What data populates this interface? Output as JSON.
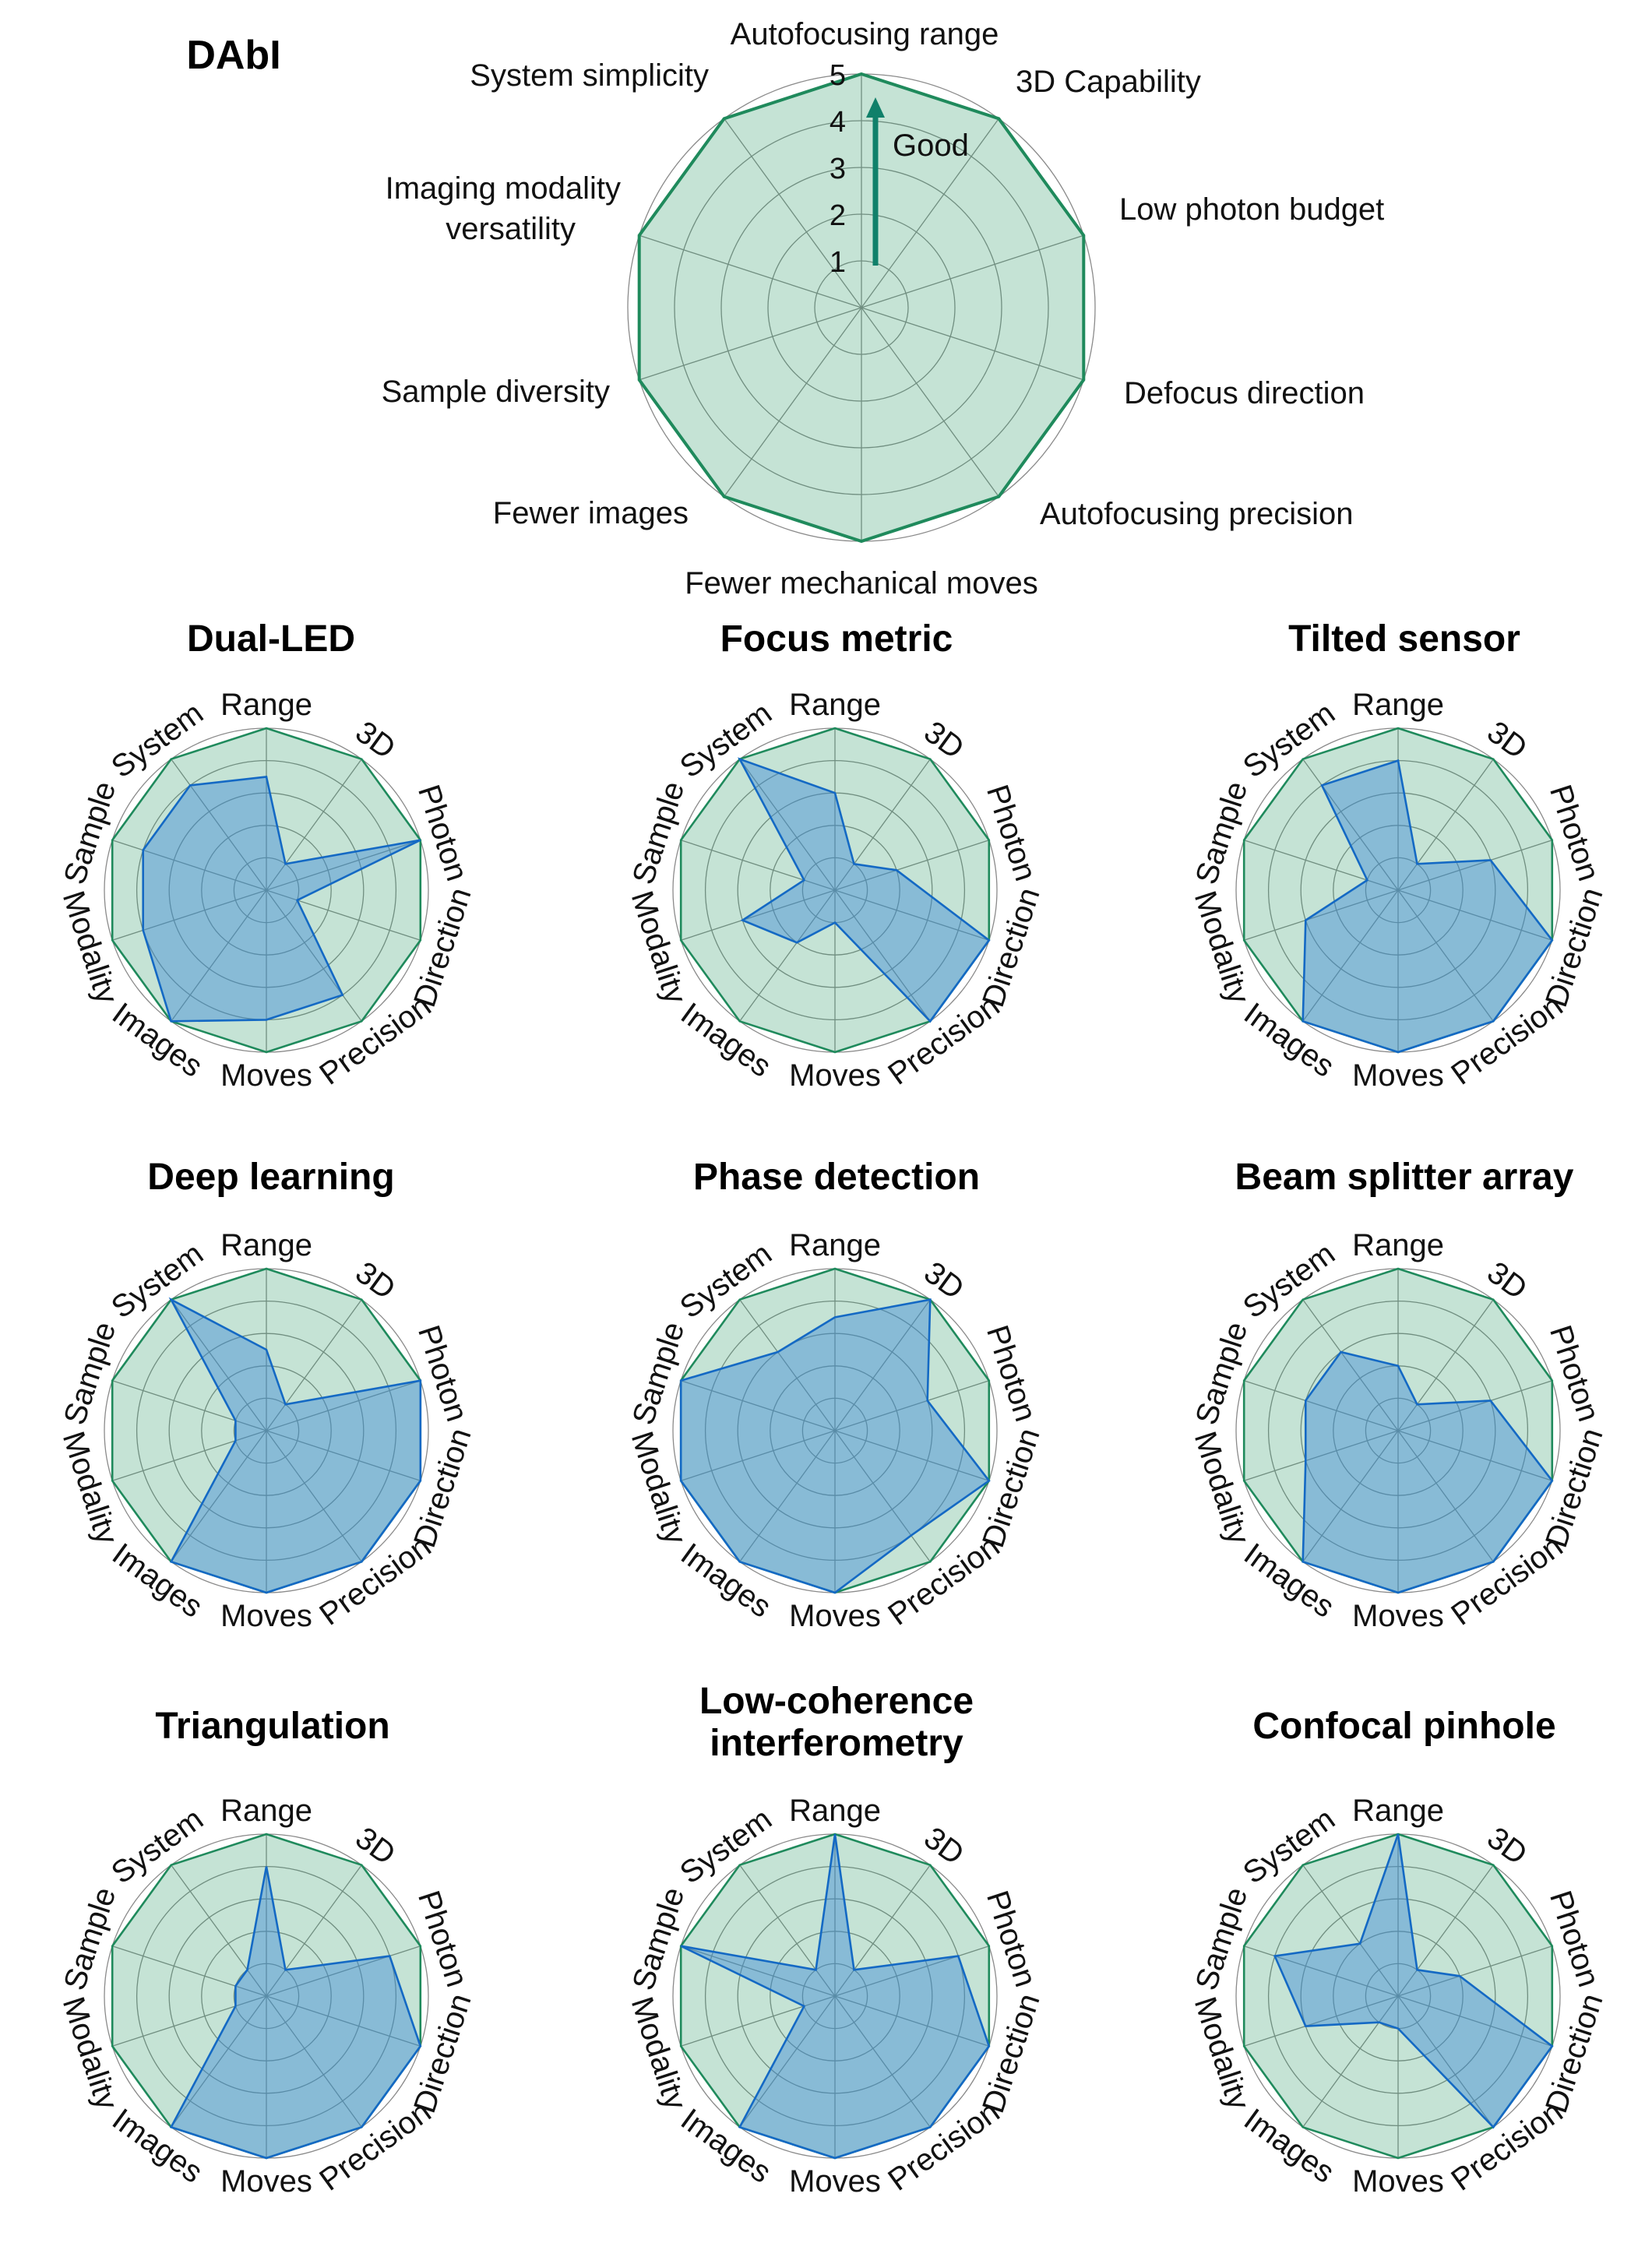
{
  "colors": {
    "dabi_line": "#1f8a5c",
    "dabi_fill": "#2e9a68",
    "method_line": "#1469c4",
    "method_fill": "#3d8ad6",
    "grid": "#8a8a8a",
    "arrow": "#10806a"
  },
  "chart_data": [
    {
      "type": "radar",
      "title": "DAbI",
      "axes": [
        "Autofocusing range",
        "3D Capability",
        "Low photon budget",
        "Defocus direction",
        "Autofocusing precision",
        "Fewer mechanical moves",
        "Fewer images",
        "Sample diversity",
        "Imaging modality versatility",
        "System simplicity"
      ],
      "rmax": 5,
      "ticks": [
        "1",
        "2",
        "3",
        "4",
        "5"
      ],
      "annotation": "Good",
      "series": [
        {
          "name": "",
          "values": [
            5,
            5,
            5,
            5,
            5,
            5,
            5,
            5,
            5,
            5
          ]
        }
      ]
    },
    {
      "type": "radar",
      "title": "Dual-LED",
      "axes": [
        "Range",
        "3D",
        "Photon",
        "Direction",
        "Precision",
        "Moves",
        "Images",
        "Modality",
        "Sample",
        "System"
      ],
      "rmax": 5,
      "series": [
        {
          "name": "",
          "values": [
            5,
            5,
            5,
            5,
            5,
            5,
            5,
            5,
            5,
            5
          ]
        },
        {
          "name": "",
          "values": [
            3.5,
            1,
            5,
            1,
            4,
            4,
            5,
            4,
            4,
            4
          ]
        }
      ]
    },
    {
      "type": "radar",
      "title": "Focus metric",
      "axes": [
        "Range",
        "3D",
        "Photon",
        "Direction",
        "Precision",
        "Moves",
        "Images",
        "Modality",
        "Sample",
        "System"
      ],
      "rmax": 5,
      "series": [
        {
          "name": "",
          "values": [
            5,
            5,
            5,
            5,
            5,
            5,
            5,
            5,
            5,
            5
          ]
        },
        {
          "name": "",
          "values": [
            3,
            1,
            2,
            5,
            5,
            1,
            2,
            3,
            1,
            5
          ]
        }
      ]
    },
    {
      "type": "radar",
      "title": "Tilted sensor",
      "axes": [
        "Range",
        "3D",
        "Photon",
        "Direction",
        "Precision",
        "Moves",
        "Images",
        "Modality",
        "Sample",
        "System"
      ],
      "rmax": 5,
      "series": [
        {
          "name": "",
          "values": [
            4,
            1,
            3,
            5,
            5,
            5,
            5,
            3,
            1,
            4
          ]
        }
      ]
    },
    {
      "type": "radar",
      "title": "Deep learning",
      "axes": [
        "Range",
        "3D",
        "Photon",
        "Direction",
        "Precision",
        "Moves",
        "Images",
        "Modality",
        "Sample",
        "System"
      ],
      "rmax": 5,
      "series": [
        {
          "name": "",
          "values": [
            5,
            5,
            5,
            5,
            5,
            5,
            5,
            5,
            5,
            5
          ]
        },
        {
          "name": "",
          "values": [
            2.5,
            1,
            5,
            5,
            5,
            5,
            5,
            1,
            1,
            5
          ]
        }
      ]
    },
    {
      "type": "radar",
      "title": "Phase detection",
      "axes": [
        "Range",
        "3D",
        "Photon",
        "Direction",
        "Precision",
        "Moves",
        "Images",
        "Modality",
        "Sample",
        "System"
      ],
      "rmax": 5,
      "series": [
        {
          "name": "",
          "values": [
            5,
            5,
            5,
            5,
            5,
            5,
            5,
            5,
            5,
            5
          ]
        },
        {
          "name": "",
          "values": [
            3.5,
            5,
            3,
            5,
            4,
            5,
            5,
            5,
            5,
            3
          ]
        }
      ]
    },
    {
      "type": "radar",
      "title": "Beam splitter array",
      "axes": [
        "Range",
        "3D",
        "Photon",
        "Direction",
        "Precision",
        "Moves",
        "Images",
        "Modality",
        "Sample",
        "System"
      ],
      "rmax": 5,
      "series": [
        {
          "name": "",
          "values": [
            5,
            5,
            5,
            5,
            5,
            5,
            5,
            5,
            5,
            5
          ]
        },
        {
          "name": "",
          "values": [
            2,
            1,
            3,
            5,
            5,
            5,
            5,
            3,
            3,
            3
          ]
        }
      ]
    },
    {
      "type": "radar",
      "title": "Triangulation",
      "axes": [
        "Range",
        "3D",
        "Photon",
        "Direction",
        "Precision",
        "Moves",
        "Images",
        "Modality",
        "Sample",
        "System"
      ],
      "rmax": 5,
      "series": [
        {
          "name": "",
          "values": [
            5,
            5,
            5,
            5,
            5,
            5,
            5,
            5,
            5,
            5
          ]
        },
        {
          "name": "",
          "values": [
            4,
            1,
            4,
            5,
            5,
            5,
            5,
            1,
            1,
            1
          ]
        }
      ]
    },
    {
      "type": "radar",
      "title": "Low-coherence interferometry",
      "title_lines": [
        "Low-coherence",
        "interferometry"
      ],
      "axes": [
        "Range",
        "3D",
        "Photon",
        "Direction",
        "Precision",
        "Moves",
        "Images",
        "Modality",
        "Sample",
        "System"
      ],
      "rmax": 5,
      "series": [
        {
          "name": "",
          "values": [
            5,
            5,
            5,
            5,
            5,
            5,
            5,
            5,
            5,
            5
          ]
        },
        {
          "name": "",
          "values": [
            5,
            1,
            4,
            5,
            5,
            5,
            5,
            1,
            5,
            1
          ]
        }
      ]
    },
    {
      "type": "radar",
      "title": "Confocal pinhole",
      "axes": [
        "Range",
        "3D",
        "Photon",
        "Direction",
        "Precision",
        "Moves",
        "Images",
        "Modality",
        "Sample",
        "System"
      ],
      "rmax": 5,
      "series": [
        {
          "name": "",
          "values": [
            5,
            5,
            5,
            5,
            5,
            5,
            5,
            5,
            5,
            5
          ]
        },
        {
          "name": "",
          "values": [
            5,
            1,
            2,
            5,
            5,
            1,
            1,
            3,
            4,
            2
          ]
        }
      ]
    }
  ]
}
